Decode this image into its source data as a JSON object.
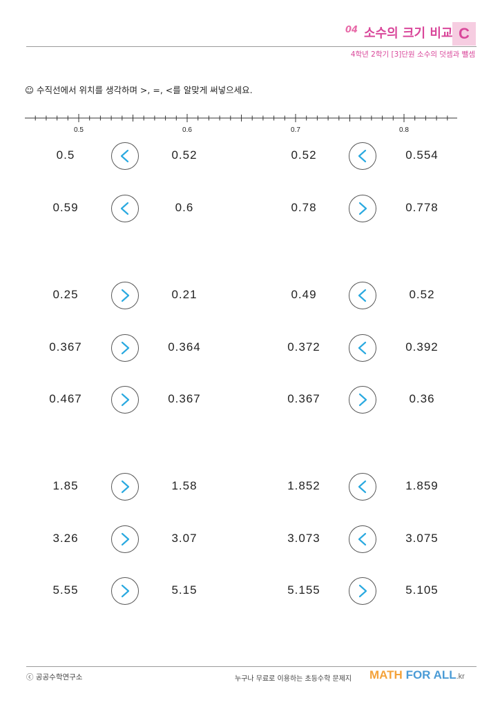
{
  "header": {
    "number": "04",
    "title": "소수의 크기 비교",
    "level": "C",
    "subtitle": "4학년 2학기 [3]단원 소수의 덧셈과 뺄셈"
  },
  "instruction": "☺ 수직선에서 위치를 생각하며 >, =, <를 알맞게 써넣으세요.",
  "number_line": {
    "min": 0.45,
    "max": 0.85,
    "step": 0.01,
    "labels": [
      "0.5",
      "0.6",
      "0.7",
      "0.8"
    ]
  },
  "groups": [
    {
      "rows": [
        {
          "left": {
            "a": "0.5",
            "sign": "<",
            "b": "0.52"
          },
          "right": {
            "a": "0.52",
            "sign": "<",
            "b": "0.554"
          }
        },
        {
          "left": {
            "a": "0.59",
            "sign": "<",
            "b": "0.6"
          },
          "right": {
            "a": "0.78",
            "sign": ">",
            "b": "0.778"
          }
        }
      ]
    },
    {
      "rows": [
        {
          "left": {
            "a": "0.25",
            "sign": ">",
            "b": "0.21"
          },
          "right": {
            "a": "0.49",
            "sign": "<",
            "b": "0.52"
          }
        },
        {
          "left": {
            "a": "0.367",
            "sign": ">",
            "b": "0.364"
          },
          "right": {
            "a": "0.372",
            "sign": "<",
            "b": "0.392"
          }
        },
        {
          "left": {
            "a": "0.467",
            "sign": ">",
            "b": "0.367"
          },
          "right": {
            "a": "0.367",
            "sign": ">",
            "b": "0.36"
          }
        }
      ]
    },
    {
      "rows": [
        {
          "left": {
            "a": "1.85",
            "sign": ">",
            "b": "1.58"
          },
          "right": {
            "a": "1.852",
            "sign": "<",
            "b": "1.859"
          }
        },
        {
          "left": {
            "a": "3.26",
            "sign": ">",
            "b": "3.07"
          },
          "right": {
            "a": "3.073",
            "sign": "<",
            "b": "3.075"
          }
        },
        {
          "left": {
            "a": "5.55",
            "sign": ">",
            "b": "5.15"
          },
          "right": {
            "a": "5.155",
            "sign": ">",
            "b": "5.105"
          }
        }
      ]
    }
  ],
  "colors": {
    "answer": "#29a9e0",
    "brand": "#d9479a"
  },
  "footer": {
    "copyright": "ⓒ 공공수학연구소",
    "tagline": "누구나 무료로 이용하는 초등수학 문제지",
    "logo_math": "MATH",
    "logo_for": "FOR",
    "logo_all": "ALL",
    "logo_kr": ".kr"
  }
}
